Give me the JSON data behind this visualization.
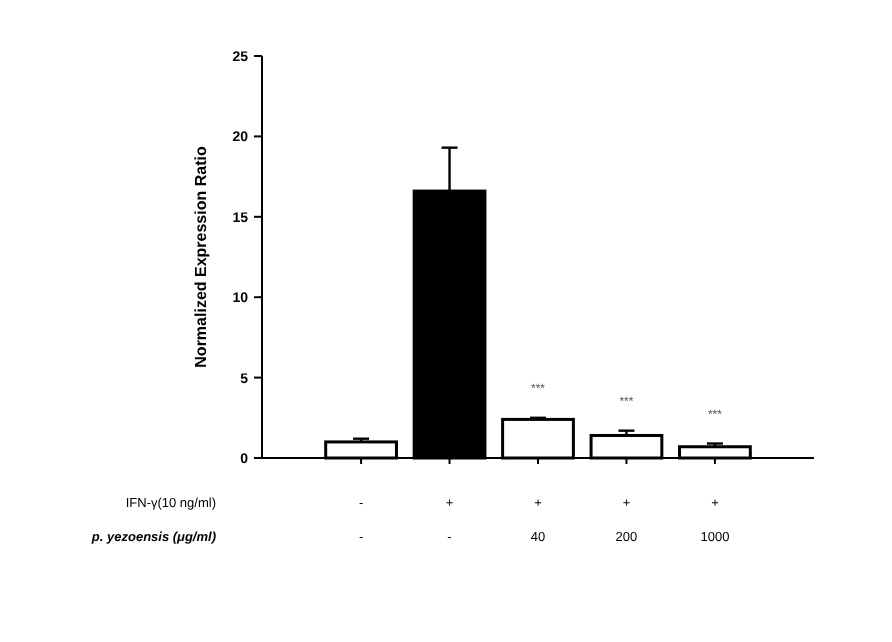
{
  "chart_data": {
    "type": "bar",
    "ylabel": "Normalized Expression Ratio",
    "categories": [
      "-\n-",
      "+\n-",
      "+\n40",
      "+\n200",
      "+\n1000"
    ],
    "values": [
      1.0,
      16.6,
      2.4,
      1.4,
      0.7
    ],
    "errors": [
      [
        1.0,
        1.2
      ],
      [
        16.6,
        19.3
      ],
      [
        2.4,
        2.5
      ],
      [
        1.4,
        1.7
      ],
      [
        0.7,
        0.9
      ]
    ],
    "colors": [
      "#ffffff",
      "#000000",
      "#ffffff",
      "#ffffff",
      "#ffffff"
    ],
    "ylim": [
      0,
      25
    ],
    "yticks": [
      0,
      5,
      10,
      15,
      20,
      25
    ],
    "grid": false,
    "annotations": [
      "IFN-γ(10 ng/ml)",
      "p. yezoensis (μg/ml)",
      {
        "text": "***",
        "x": "+\n40",
        "y": 2.5
      },
      {
        "text": "***",
        "x": "+\n200",
        "y": 1.7
      },
      {
        "text": "***",
        "x": "+\n1000",
        "y": 0.9
      }
    ]
  }
}
